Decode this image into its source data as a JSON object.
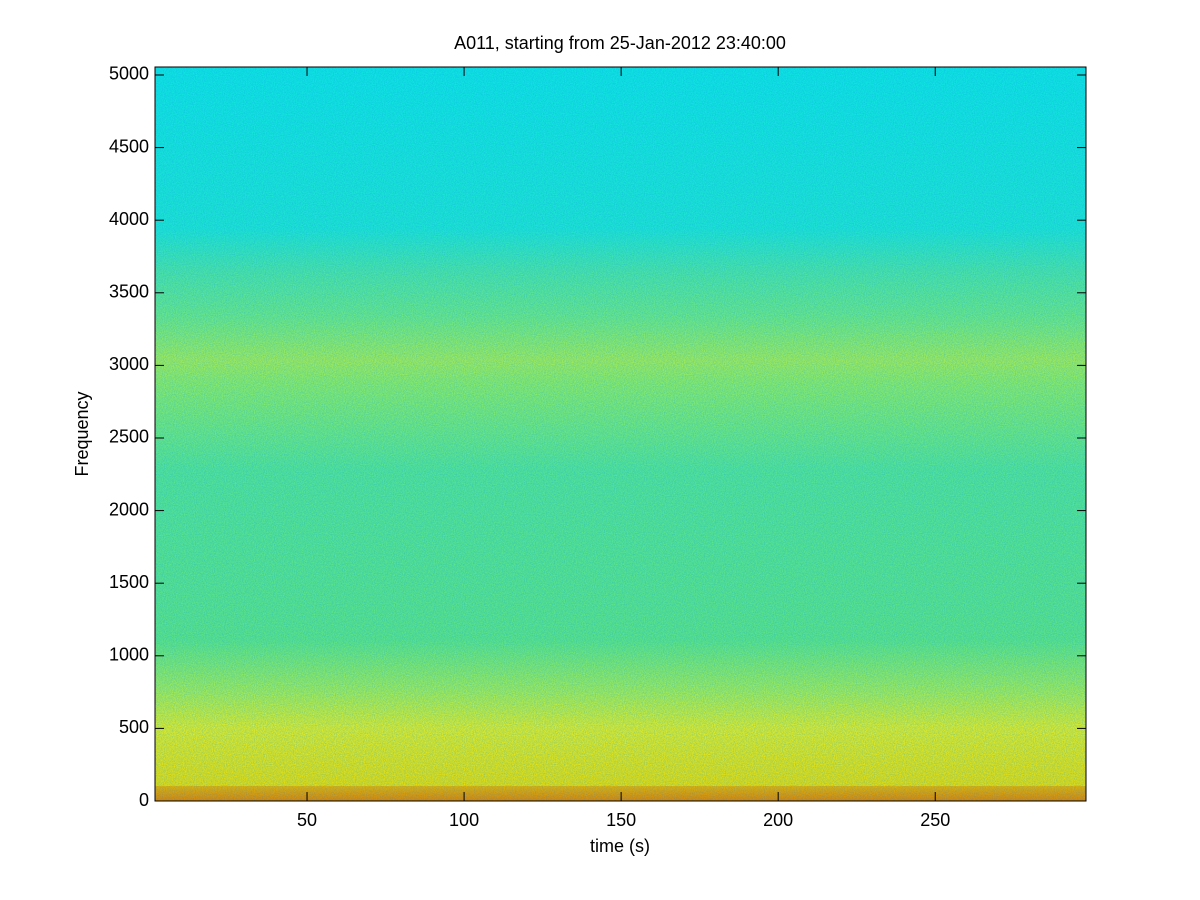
{
  "chart_data": {
    "type": "spectrogram",
    "title": "A011, starting from 25-Jan-2012 23:40:00",
    "x_label": "time (s)",
    "y_label": "Frequency",
    "xlim": [
      1.6,
      298
    ],
    "ylim": [
      0,
      5055
    ],
    "xticks": [
      50,
      100,
      150,
      200,
      250
    ],
    "yticks": [
      0,
      500,
      1000,
      1500,
      2000,
      2500,
      3000,
      3500,
      4000,
      4500,
      5000
    ],
    "grid": false
  }
}
